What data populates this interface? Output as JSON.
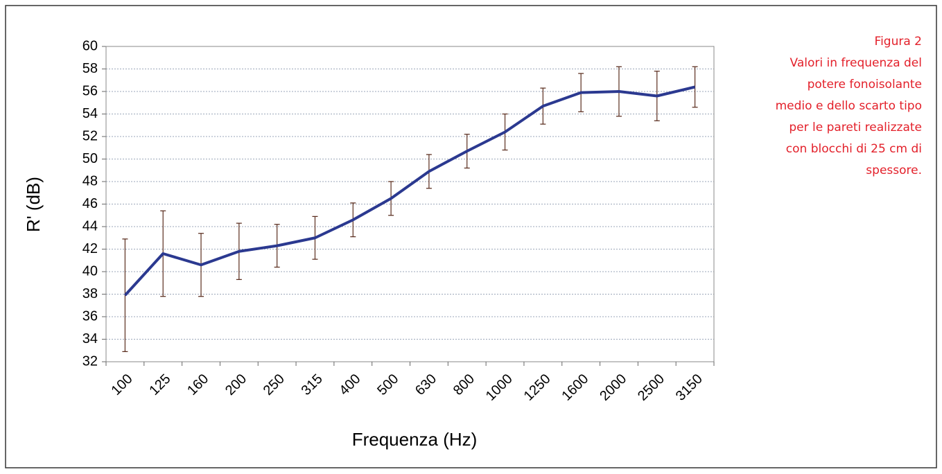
{
  "chart_data": {
    "type": "line",
    "y_label": "R' (dB)",
    "x_label": "Frequenza (Hz)",
    "caption": [
      "Figura 2",
      "Valori in frequenza del",
      "potere fonoisolante",
      "medio e dello scarto tipo",
      "per le pareti realizzate",
      "con blocchi di 25 cm di",
      "spessore."
    ],
    "categories": [
      "100",
      "125",
      "160",
      "200",
      "250",
      "315",
      "400",
      "500",
      "630",
      "800",
      "1000",
      "1250",
      "1600",
      "2000",
      "2500",
      "3150"
    ],
    "values": [
      37.9,
      41.6,
      40.6,
      41.8,
      42.3,
      43.0,
      44.6,
      46.5,
      48.9,
      50.7,
      52.4,
      54.7,
      55.9,
      56.0,
      55.6,
      56.4
    ],
    "errors": [
      5.0,
      3.8,
      2.8,
      2.5,
      1.9,
      1.9,
      1.5,
      1.5,
      1.5,
      1.5,
      1.6,
      1.6,
      1.7,
      2.2,
      2.2,
      1.8
    ],
    "color": "#2b3990",
    "error_color": "#5a2d1e",
    "ylim": [
      32,
      60
    ],
    "yticks": [
      32,
      34,
      36,
      38,
      40,
      42,
      44,
      46,
      48,
      50,
      52,
      54,
      56,
      58,
      60
    ],
    "grid": true
  }
}
